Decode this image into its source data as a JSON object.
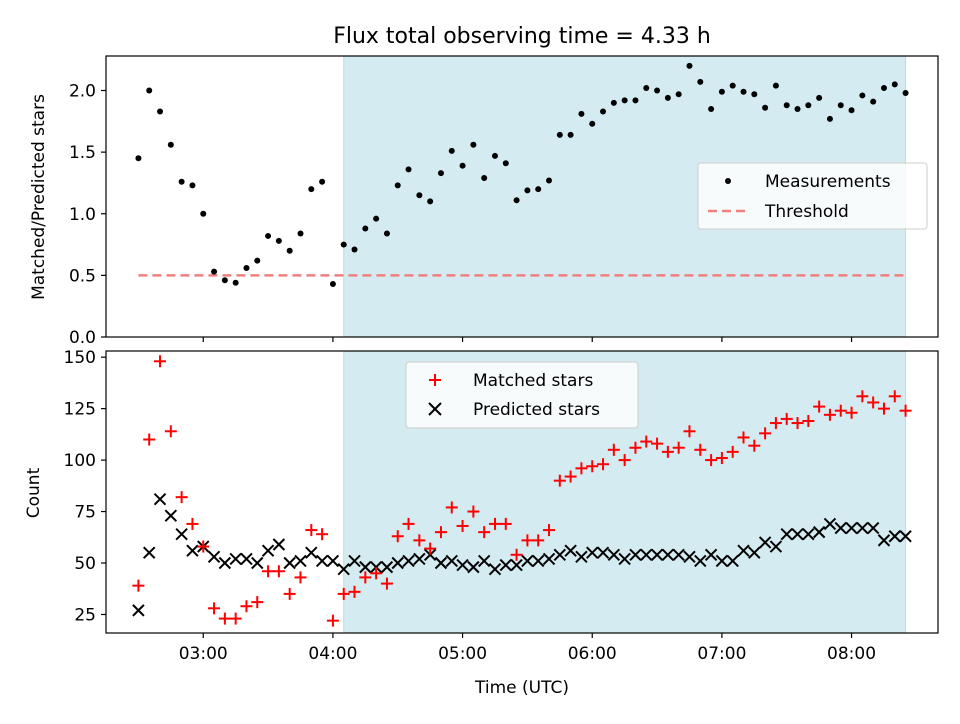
{
  "chart_data": [
    {
      "type": "scatter",
      "title": "Flux total observing time = 4.33 h",
      "xlabel": "",
      "ylabel": "Matched/Predicted stars",
      "ylim": [
        0,
        2.28
      ],
      "yticks": [
        "0.0",
        "0.5",
        "1.0",
        "1.5",
        "2.0"
      ],
      "ytick_values": [
        0,
        0.5,
        1.0,
        1.5,
        2.0
      ],
      "shaded_region": {
        "start": "04:05",
        "end": "08:25",
        "color": "#d4ebf1"
      },
      "threshold": {
        "name": "Threshold",
        "value": 0.5,
        "start": "02:30",
        "end": "08:25",
        "color": "#f08080"
      },
      "legend": {
        "placement": "center-right",
        "entries": [
          "Measurements",
          "Threshold"
        ]
      },
      "series": [
        {
          "name": "Measurements",
          "color": "#000000",
          "x": [
            "02:30",
            "02:35",
            "02:40",
            "02:45",
            "02:50",
            "02:55",
            "03:00",
            "03:05",
            "03:10",
            "03:15",
            "03:20",
            "03:25",
            "03:30",
            "03:35",
            "03:40",
            "03:45",
            "03:50",
            "03:55",
            "04:00",
            "04:05",
            "04:10",
            "04:15",
            "04:20",
            "04:25",
            "04:30",
            "04:35",
            "04:40",
            "04:45",
            "04:50",
            "04:55",
            "05:00",
            "05:05",
            "05:10",
            "05:15",
            "05:20",
            "05:25",
            "05:30",
            "05:35",
            "05:40",
            "05:45",
            "05:50",
            "05:55",
            "06:00",
            "06:05",
            "06:10",
            "06:15",
            "06:20",
            "06:25",
            "06:30",
            "06:35",
            "06:40",
            "06:45",
            "06:50",
            "06:55",
            "07:00",
            "07:05",
            "07:10",
            "07:15",
            "07:20",
            "07:25",
            "07:30",
            "07:35",
            "07:40",
            "07:45",
            "07:50",
            "07:55",
            "08:00",
            "08:05",
            "08:10",
            "08:15",
            "08:20",
            "08:25"
          ],
          "y": [
            1.45,
            2.0,
            1.83,
            1.56,
            1.26,
            1.23,
            1.0,
            0.53,
            0.46,
            0.44,
            0.56,
            0.62,
            0.82,
            0.78,
            0.7,
            0.84,
            1.2,
            1.26,
            0.43,
            0.75,
            0.71,
            0.88,
            0.96,
            0.84,
            1.23,
            1.36,
            1.15,
            1.1,
            1.33,
            1.51,
            1.39,
            1.56,
            1.29,
            1.47,
            1.41,
            1.11,
            1.19,
            1.2,
            1.27,
            1.64,
            1.64,
            1.81,
            1.73,
            1.83,
            1.9,
            1.92,
            1.92,
            2.02,
            2.0,
            1.94,
            1.97,
            2.2,
            2.07,
            1.85,
            1.99,
            2.04,
            1.99,
            1.97,
            1.86,
            2.04,
            1.88,
            1.85,
            1.88,
            1.94,
            1.77,
            1.88,
            1.84,
            1.96,
            1.91,
            2.02,
            2.05,
            1.98
          ]
        }
      ]
    },
    {
      "type": "scatter",
      "title": "",
      "xlabel": "Time (UTC)",
      "ylabel": "Count",
      "xlim": [
        "02:15",
        "08:40"
      ],
      "xticks": [
        "03:00",
        "04:00",
        "05:00",
        "06:00",
        "07:00",
        "08:00"
      ],
      "ylim": [
        16,
        153
      ],
      "yticks": [
        "25",
        "50",
        "75",
        "100",
        "125",
        "150"
      ],
      "ytick_values": [
        25,
        50,
        75,
        100,
        125,
        150
      ],
      "shaded_region": {
        "start": "04:05",
        "end": "08:25",
        "color": "#d4ebf1"
      },
      "legend": {
        "placement": "top-center",
        "entries": [
          "Matched stars",
          "Predicted stars"
        ]
      },
      "series": [
        {
          "name": "Matched stars",
          "marker": "plus",
          "color": "#ff0000",
          "x": [
            "02:30",
            "02:35",
            "02:40",
            "02:45",
            "02:50",
            "02:55",
            "03:00",
            "03:05",
            "03:10",
            "03:15",
            "03:20",
            "03:25",
            "03:30",
            "03:35",
            "03:40",
            "03:45",
            "03:50",
            "03:55",
            "04:00",
            "04:05",
            "04:10",
            "04:15",
            "04:20",
            "04:25",
            "04:30",
            "04:35",
            "04:40",
            "04:45",
            "04:50",
            "04:55",
            "05:00",
            "05:05",
            "05:10",
            "05:15",
            "05:20",
            "05:25",
            "05:30",
            "05:35",
            "05:40",
            "05:45",
            "05:50",
            "05:55",
            "06:00",
            "06:05",
            "06:10",
            "06:15",
            "06:20",
            "06:25",
            "06:30",
            "06:35",
            "06:40",
            "06:45",
            "06:50",
            "06:55",
            "07:00",
            "07:05",
            "07:10",
            "07:15",
            "07:20",
            "07:25",
            "07:30",
            "07:35",
            "07:40",
            "07:45",
            "07:50",
            "07:55",
            "08:00",
            "08:05",
            "08:10",
            "08:15",
            "08:20",
            "08:25"
          ],
          "y": [
            39,
            110,
            148,
            114,
            82,
            69,
            58,
            28,
            23,
            23,
            29,
            31,
            46,
            46,
            35,
            43,
            66,
            64,
            22,
            35,
            36,
            43,
            45,
            40,
            63,
            69,
            61,
            57,
            65,
            77,
            68,
            75,
            65,
            69,
            69,
            54,
            61,
            61,
            66,
            90,
            92,
            96,
            97,
            98,
            105,
            100,
            106,
            109,
            108,
            104,
            106,
            114,
            105,
            100,
            101,
            104,
            111,
            107,
            113,
            118,
            120,
            118,
            119,
            126,
            122,
            124,
            123,
            131,
            128,
            125,
            131,
            124
          ]
        },
        {
          "name": "Predicted stars",
          "marker": "x",
          "color": "#000000",
          "x": [
            "02:30",
            "02:35",
            "02:40",
            "02:45",
            "02:50",
            "02:55",
            "03:00",
            "03:05",
            "03:10",
            "03:15",
            "03:20",
            "03:25",
            "03:30",
            "03:35",
            "03:40",
            "03:45",
            "03:50",
            "03:55",
            "04:00",
            "04:05",
            "04:10",
            "04:15",
            "04:20",
            "04:25",
            "04:30",
            "04:35",
            "04:40",
            "04:45",
            "04:50",
            "04:55",
            "05:00",
            "05:05",
            "05:10",
            "05:15",
            "05:20",
            "05:25",
            "05:30",
            "05:35",
            "05:40",
            "05:45",
            "05:50",
            "05:55",
            "06:00",
            "06:05",
            "06:10",
            "06:15",
            "06:20",
            "06:25",
            "06:30",
            "06:35",
            "06:40",
            "06:45",
            "06:50",
            "06:55",
            "07:00",
            "07:05",
            "07:10",
            "07:15",
            "07:20",
            "07:25",
            "07:30",
            "07:35",
            "07:40",
            "07:45",
            "07:50",
            "07:55",
            "08:00",
            "08:05",
            "08:10",
            "08:15",
            "08:20",
            "08:25"
          ],
          "y": [
            27,
            55,
            81,
            73,
            64,
            56,
            58,
            53,
            50,
            52,
            52,
            50,
            56,
            59,
            50,
            51,
            55,
            51,
            51,
            47,
            51,
            48,
            48,
            48,
            50,
            51,
            52,
            54,
            50,
            51,
            49,
            48,
            51,
            47,
            49,
            49,
            51,
            51,
            52,
            54,
            56,
            53,
            55,
            55,
            54,
            52,
            54,
            54,
            54,
            54,
            54,
            53,
            51,
            54,
            51,
            51,
            56,
            55,
            60,
            58,
            64,
            64,
            64,
            65,
            69,
            67,
            67,
            67,
            67,
            61,
            63,
            63
          ]
        }
      ]
    }
  ]
}
